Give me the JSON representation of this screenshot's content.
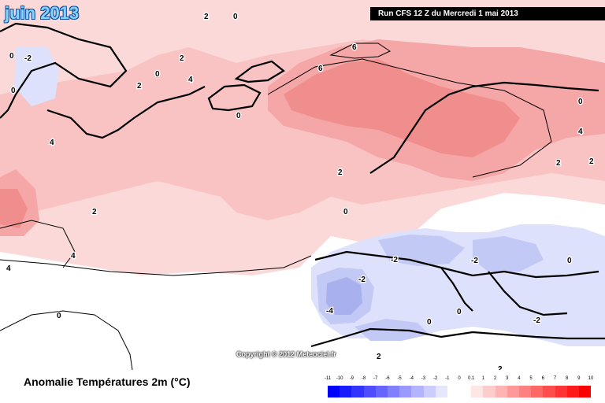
{
  "header": {
    "month_title": "juin 2013",
    "run_banner": "Run CFS 12 Z du Mercredi 1 mai 2013"
  },
  "copyright": "Copyright © 2012 Meteociel.fr",
  "legend": {
    "title": "Anomalie Températures 2m (°C)",
    "tick_labels": [
      "-11",
      "-10",
      "-9",
      "-8",
      "-7",
      "-6",
      "-5",
      "-4",
      "-3",
      "-2",
      "-1",
      "0",
      "0.1",
      "1",
      "2",
      "3",
      "4",
      "5",
      "6",
      "7",
      "8",
      "9",
      "10"
    ],
    "colors": [
      "#0000ff",
      "#1a1aff",
      "#3333ff",
      "#4d4dff",
      "#6666ff",
      "#8080ff",
      "#9999ff",
      "#b3b3ff",
      "#ccccff",
      "#e6e6ff",
      "#ffffff",
      "#ffffff",
      "#ffe6e6",
      "#ffcccc",
      "#ffb3b3",
      "#ff9999",
      "#ff8080",
      "#ff6666",
      "#ff4d4d",
      "#ff3333",
      "#ff1a1a",
      "#ff0000"
    ]
  },
  "map_colors": {
    "ocean_warm_weak": "#fbd9d9",
    "ocean_warm": "#f9c3c3",
    "warm_moderate": "#f5a6a6",
    "warm_strong": "#f08d8d",
    "neutral": "#ffffff",
    "cool_weak": "#dde1fb",
    "cool_moderate": "#c3c9f5",
    "cool_strong": "#a9b0ee",
    "coast": "#000000"
  },
  "contour_labels": [
    "0",
    "2",
    "4",
    "6",
    "0",
    "-2",
    "2",
    "4",
    "0",
    "-4",
    "2",
    "0",
    "-2",
    "2",
    "4",
    "2",
    "0",
    "2",
    "0",
    "4",
    "2",
    "-2",
    "2",
    "0",
    "0",
    "0",
    "-2",
    "0",
    "-2",
    "0",
    "2",
    "4",
    "6"
  ]
}
